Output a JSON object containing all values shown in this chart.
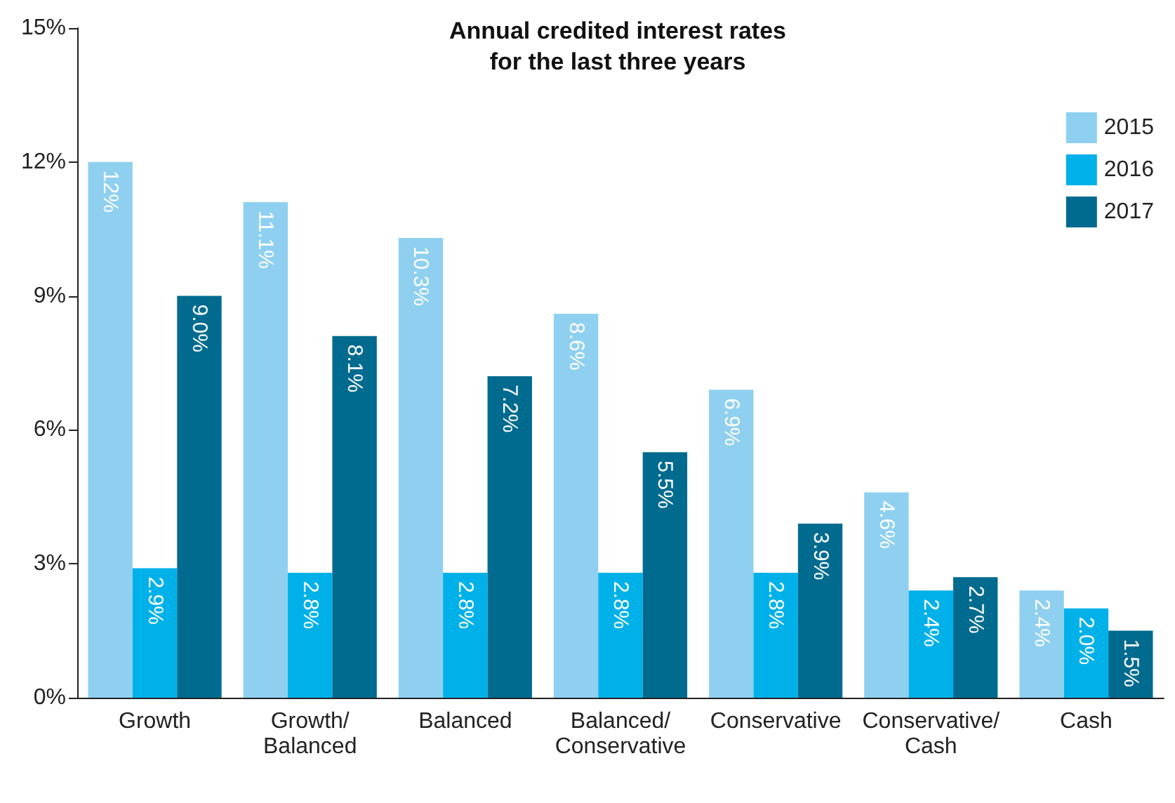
{
  "chart_data": {
    "type": "bar",
    "title": "Annual credited interest rates\nfor the last three years",
    "categories": [
      "Growth",
      "Growth/\nBalanced",
      "Balanced",
      "Balanced/\nConservative",
      "Conservative",
      "Conservative/\nCash",
      "Cash"
    ],
    "series": [
      {
        "name": "2015",
        "color": "#8fd0f0",
        "values": [
          12,
          11.1,
          10.3,
          8.6,
          6.9,
          4.6,
          2.4
        ],
        "value_labels": [
          "12%",
          "11.1%",
          "10.3%",
          "8.6%",
          "6.9%",
          "4.6%",
          "2.4%"
        ]
      },
      {
        "name": "2016",
        "color": "#00b1e9",
        "values": [
          2.9,
          2.8,
          2.8,
          2.8,
          2.8,
          2.4,
          2.0
        ],
        "value_labels": [
          "2.9%",
          "2.8%",
          "2.8%",
          "2.8%",
          "2.8%",
          "2.4%",
          "2.0%"
        ]
      },
      {
        "name": "2017",
        "color": "#006b8f",
        "values": [
          9.0,
          8.1,
          7.2,
          5.5,
          3.9,
          2.7,
          1.5
        ],
        "value_labels": [
          "9.0%",
          "8.1%",
          "7.2%",
          "5.5%",
          "3.9%",
          "2.7%",
          "1.5%"
        ]
      }
    ],
    "ylim": [
      0,
      15
    ],
    "yticks": [
      {
        "value": 0,
        "label": "0%"
      },
      {
        "value": 3,
        "label": "3%"
      },
      {
        "value": 6,
        "label": "6%"
      },
      {
        "value": 9,
        "label": "9%"
      },
      {
        "value": 12,
        "label": "12%"
      },
      {
        "value": 15,
        "label": "15%"
      }
    ],
    "grid": false,
    "legend": "top right"
  }
}
